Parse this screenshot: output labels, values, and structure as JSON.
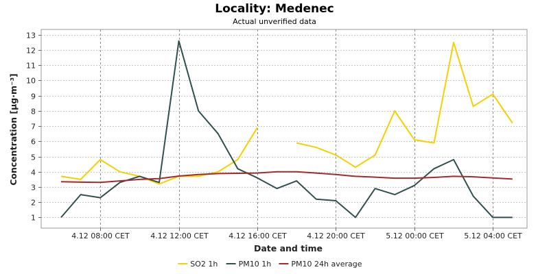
{
  "chart_data": {
    "type": "line",
    "title": "Locality: Medenec",
    "subtitle": "Actual unverified data",
    "xlabel": "Date and time",
    "ylabel": "Concentration [µg·m⁻³]",
    "ylim": [
      0.3,
      13.35
    ],
    "yticks": [
      1,
      2,
      3,
      4,
      5,
      6,
      7,
      8,
      9,
      10,
      11,
      12,
      13
    ],
    "xticks": [
      "4.12 08:00 CET",
      "4.12 12:00 CET",
      "4.12 16:00 CET",
      "4.12 20:00 CET",
      "5.12 00:00 CET",
      "5.12 04:00 CET"
    ],
    "xtick_hours": [
      8,
      12,
      16,
      20,
      24,
      28
    ],
    "x_hours": [
      6,
      7,
      8,
      9,
      10,
      11,
      12,
      13,
      14,
      15,
      16,
      17,
      18,
      19,
      20,
      21,
      22,
      23,
      24,
      25,
      26,
      27,
      28,
      29
    ],
    "grid": true,
    "legend_position": "bottom",
    "series": [
      {
        "name": "SO2 1h",
        "color": "#f5d000",
        "values": [
          3.7,
          3.5,
          4.8,
          4.0,
          3.7,
          3.2,
          3.7,
          3.7,
          4.0,
          4.8,
          6.9,
          null,
          5.9,
          5.6,
          5.1,
          4.3,
          5.1,
          8.0,
          6.1,
          5.9,
          12.5,
          8.3,
          9.1,
          7.2
        ]
      },
      {
        "name": "PM10 1h",
        "color": "#2f4f4f",
        "values": [
          1.0,
          2.5,
          2.3,
          3.3,
          3.7,
          3.3,
          12.6,
          8.0,
          6.5,
          4.2,
          3.6,
          2.9,
          3.4,
          2.2,
          2.1,
          1.0,
          2.9,
          2.5,
          3.1,
          4.2,
          4.8,
          2.4,
          1.0,
          1.0
        ]
      },
      {
        "name": "PM10 24h average",
        "color": "#a52a2a",
        "values": [
          3.35,
          3.32,
          3.3,
          3.4,
          3.5,
          3.55,
          3.72,
          3.82,
          3.88,
          3.9,
          3.92,
          4.0,
          4.0,
          3.92,
          3.82,
          3.7,
          3.65,
          3.58,
          3.58,
          3.63,
          3.7,
          3.67,
          3.6,
          3.52
        ]
      }
    ]
  }
}
